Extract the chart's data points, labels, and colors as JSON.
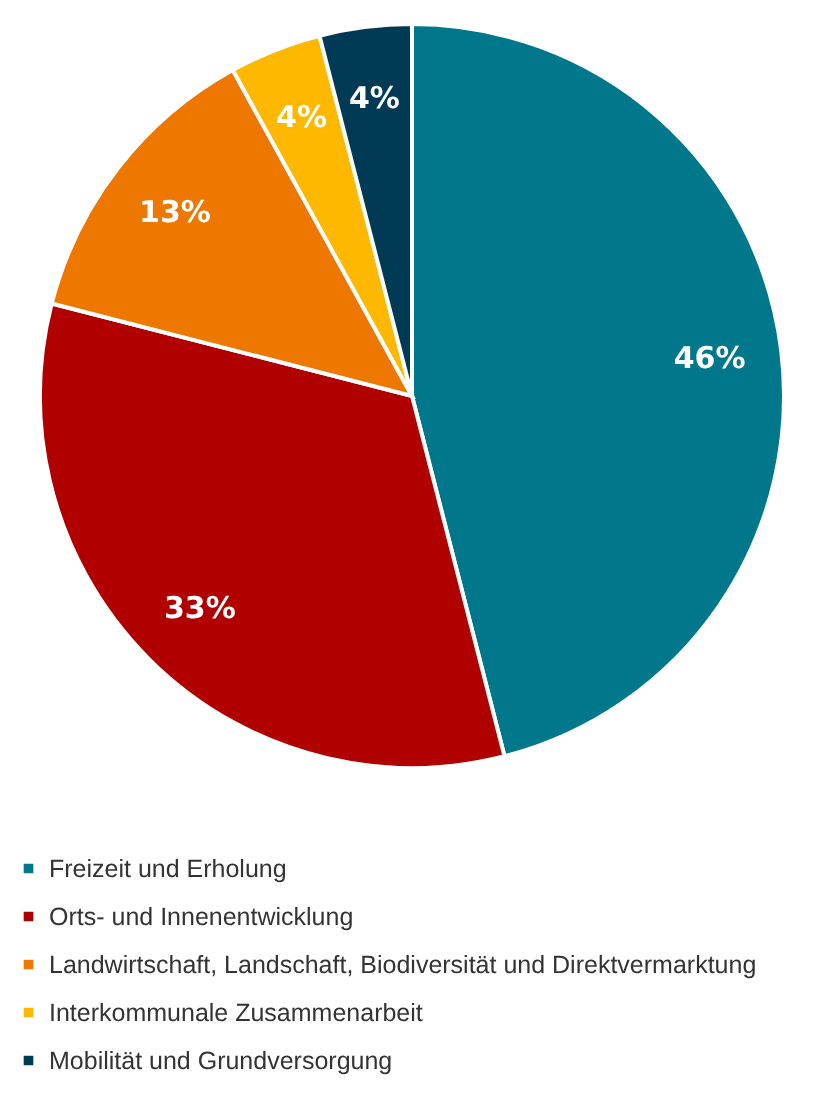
{
  "chart_data": {
    "type": "pie",
    "categories": [
      "Freizeit und Erholung",
      "Orts- und Innenentwicklung",
      "Landwirtschaft, Landschaft, Biodiversität und Direktvermarktung",
      "Interkommunale Zusammenarbeit",
      "Mobilität und Grundversorgung"
    ],
    "values": [
      46,
      33,
      13,
      4,
      4
    ],
    "colors": [
      "#00778b",
      "#b00000",
      "#ee7700",
      "#ffb800",
      "#003a55"
    ],
    "value_labels": [
      "46%",
      "33%",
      "13%",
      "4%",
      "4%"
    ],
    "legend": "bottom"
  }
}
